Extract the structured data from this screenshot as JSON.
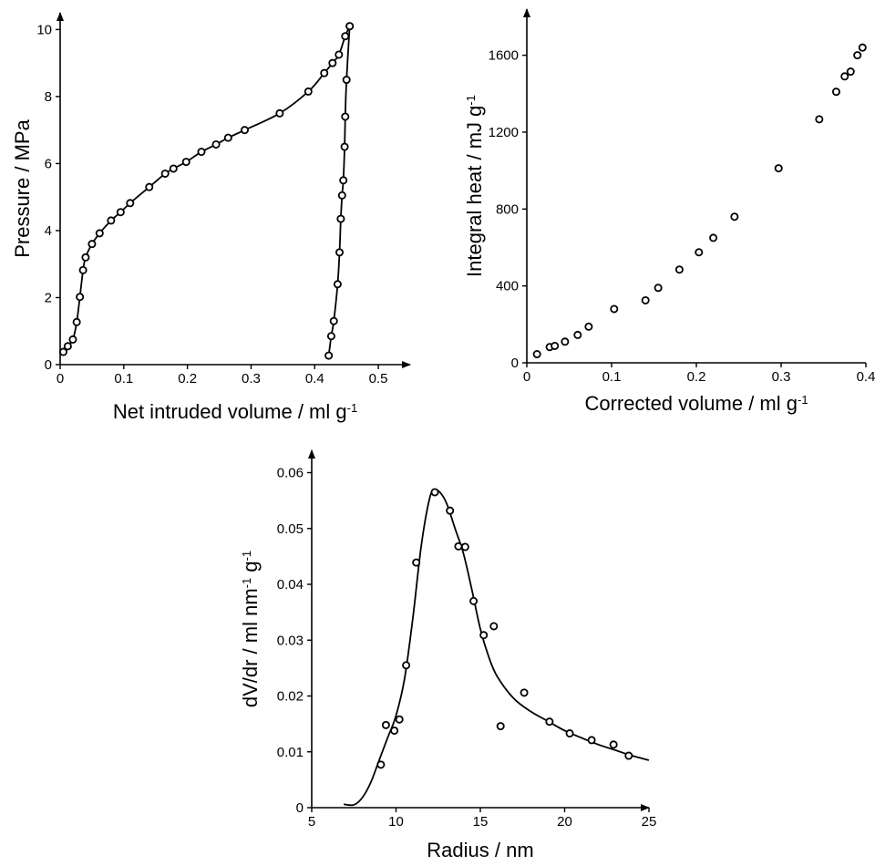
{
  "chart_data": [
    {
      "id": "intrusion",
      "type": "line",
      "title": "",
      "xlabel": {
        "main": "Net intruded volume / ml g",
        "sup": "-1"
      },
      "ylabel": {
        "main": "Pressure / MPa",
        "sup": ""
      },
      "xlim": [
        0,
        0.55
      ],
      "ylim": [
        0,
        10.5
      ],
      "xticks": [
        0,
        0.1,
        0.2,
        0.3,
        0.4,
        0.5
      ],
      "xtick_labels": [
        "0",
        "0.1",
        "0.2",
        "0.3",
        "0.4",
        "0.5"
      ],
      "yticks": [
        0,
        2,
        4,
        6,
        8,
        10
      ],
      "ytick_labels": [
        "0",
        "2",
        "4",
        "6",
        "8",
        "10"
      ],
      "series": [
        {
          "markers": true,
          "points": [
            [
              0.005,
              0.38
            ],
            [
              0.012,
              0.55
            ],
            [
              0.02,
              0.75
            ],
            [
              0.026,
              1.27
            ],
            [
              0.031,
              2.02
            ],
            [
              0.036,
              2.82
            ],
            [
              0.04,
              3.2
            ],
            [
              0.05,
              3.6
            ],
            [
              0.062,
              3.92
            ],
            [
              0.08,
              4.3
            ],
            [
              0.095,
              4.55
            ],
            [
              0.11,
              4.82
            ],
            [
              0.14,
              5.3
            ],
            [
              0.165,
              5.7
            ],
            [
              0.178,
              5.85
            ],
            [
              0.198,
              6.05
            ],
            [
              0.222,
              6.35
            ],
            [
              0.245,
              6.57
            ],
            [
              0.264,
              6.77
            ],
            [
              0.29,
              7.0
            ],
            [
              0.345,
              7.5
            ],
            [
              0.39,
              8.15
            ],
            [
              0.415,
              8.7
            ],
            [
              0.428,
              9.0
            ],
            [
              0.438,
              9.25
            ],
            [
              0.448,
              9.8
            ],
            [
              0.455,
              10.1
            ]
          ]
        },
        {
          "markers": true,
          "points": [
            [
              0.455,
              10.1
            ],
            [
              0.45,
              8.5
            ],
            [
              0.448,
              7.4
            ],
            [
              0.447,
              6.5
            ],
            [
              0.445,
              5.5
            ],
            [
              0.443,
              5.05
            ],
            [
              0.441,
              4.35
            ],
            [
              0.439,
              3.35
            ],
            [
              0.436,
              2.4
            ],
            [
              0.43,
              1.3
            ],
            [
              0.426,
              0.85
            ],
            [
              0.422,
              0.27
            ]
          ]
        }
      ]
    },
    {
      "id": "integral-heat",
      "type": "scatter",
      "title": "",
      "xlabel": {
        "main": "Corrected volume / ml g",
        "sup": "-1"
      },
      "ylabel": {
        "main": "Integral heat / mJ g",
        "sup": "-1"
      },
      "xlim": [
        0,
        0.4
      ],
      "ylim": [
        0,
        1840
      ],
      "xticks": [
        0,
        0.1,
        0.2,
        0.3,
        0.4
      ],
      "xtick_labels": [
        "0",
        "0.1",
        "0.2",
        "0.3",
        "0.4"
      ],
      "yticks": [
        0,
        400,
        800,
        1200,
        1600
      ],
      "ytick_labels": [
        "0",
        "400",
        "800",
        "1200",
        "1600"
      ],
      "series": [
        {
          "markers": true,
          "points": [
            [
              0.012,
              45
            ],
            [
              0.027,
              82
            ],
            [
              0.033,
              88
            ],
            [
              0.045,
              110
            ],
            [
              0.06,
              145
            ],
            [
              0.073,
              188
            ],
            [
              0.103,
              280
            ],
            [
              0.14,
              325
            ],
            [
              0.155,
              390
            ],
            [
              0.18,
              485
            ],
            [
              0.203,
              575
            ],
            [
              0.22,
              650
            ],
            [
              0.245,
              760
            ],
            [
              0.297,
              1012
            ],
            [
              0.345,
              1267
            ],
            [
              0.365,
              1410
            ],
            [
              0.375,
              1490
            ],
            [
              0.382,
              1515
            ],
            [
              0.39,
              1600
            ],
            [
              0.396,
              1640
            ]
          ]
        }
      ]
    },
    {
      "id": "pore-size-distribution",
      "type": "scatter",
      "title": "",
      "xlabel": {
        "main": "Radius / nm",
        "sup": ""
      },
      "ylabel": {
        "main": "dV/dr / ml nm",
        "sup": "-1",
        "main2": " g",
        "sup2": "-1"
      },
      "xlim": [
        5,
        25
      ],
      "ylim": [
        0,
        0.064
      ],
      "xticks": [
        5,
        10,
        15,
        20,
        25
      ],
      "xtick_labels": [
        "5",
        "10",
        "15",
        "20",
        "25"
      ],
      "yticks": [
        0,
        0.01,
        0.02,
        0.03,
        0.04,
        0.05,
        0.06
      ],
      "ytick_labels": [
        "0",
        "0.01",
        "0.02",
        "0.03",
        "0.04",
        "0.05",
        "0.06"
      ],
      "series": [
        {
          "markers": true,
          "points": [
            [
              9.1,
              0.0077
            ],
            [
              9.4,
              0.0148
            ],
            [
              9.9,
              0.0138
            ],
            [
              10.2,
              0.0158
            ],
            [
              10.6,
              0.0255
            ],
            [
              11.2,
              0.0439
            ],
            [
              12.3,
              0.0565
            ],
            [
              13.2,
              0.0532
            ],
            [
              13.7,
              0.0468
            ],
            [
              14.1,
              0.0467
            ],
            [
              14.6,
              0.037
            ],
            [
              15.2,
              0.0309
            ],
            [
              15.8,
              0.0325
            ],
            [
              16.2,
              0.0146
            ],
            [
              17.6,
              0.0206
            ],
            [
              19.1,
              0.0154
            ],
            [
              20.3,
              0.0133
            ],
            [
              21.6,
              0.0121
            ],
            [
              22.9,
              0.0113
            ],
            [
              23.8,
              0.0093
            ]
          ]
        },
        {
          "markers": false,
          "points": [
            [
              6.9,
              0.0006
            ],
            [
              7.5,
              0.0005
            ],
            [
              8.0,
              0.0018
            ],
            [
              8.5,
              0.0045
            ],
            [
              9.0,
              0.0085
            ],
            [
              9.5,
              0.0125
            ],
            [
              10.0,
              0.0165
            ],
            [
              10.5,
              0.023
            ],
            [
              11.0,
              0.034
            ],
            [
              11.5,
              0.047
            ],
            [
              12.0,
              0.0555
            ],
            [
              12.3,
              0.0568
            ],
            [
              12.6,
              0.0565
            ],
            [
              13.0,
              0.0545
            ],
            [
              13.5,
              0.05
            ],
            [
              14.0,
              0.0455
            ],
            [
              14.5,
              0.039
            ],
            [
              15.0,
              0.032
            ],
            [
              15.5,
              0.027
            ],
            [
              16.0,
              0.0235
            ],
            [
              17.0,
              0.0195
            ],
            [
              18.0,
              0.0172
            ],
            [
              19.0,
              0.0155
            ],
            [
              20.0,
              0.0138
            ],
            [
              21.0,
              0.0125
            ],
            [
              22.0,
              0.0113
            ],
            [
              23.0,
              0.0103
            ],
            [
              24.0,
              0.0093
            ],
            [
              25.0,
              0.0085
            ]
          ]
        }
      ]
    }
  ]
}
